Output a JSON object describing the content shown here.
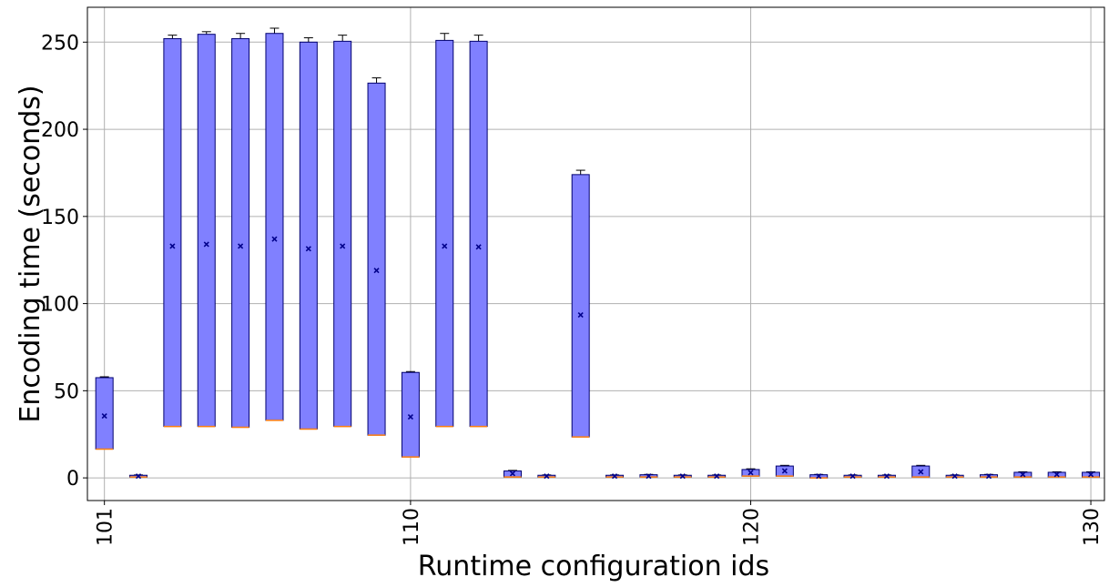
{
  "chart_data": {
    "type": "box",
    "xlabel": "Runtime configuration ids",
    "ylabel": "Encoding time (seconds)",
    "xlim": [
      100.5,
      130.4
    ],
    "ylim": [
      -13,
      270
    ],
    "xticks": [
      101,
      110,
      120,
      130
    ],
    "yticks": [
      0,
      50,
      100,
      150,
      200,
      250
    ],
    "grid": true,
    "box_color": "#8080ff",
    "median_color": "#ff7f0e",
    "mean_marker": "x",
    "positions": [
      101,
      102,
      103,
      104,
      105,
      106,
      107,
      108,
      109,
      110,
      111,
      112,
      113,
      114,
      115,
      116,
      117,
      118,
      119,
      120,
      121,
      122,
      123,
      124,
      125,
      126,
      127,
      128,
      129,
      130
    ],
    "boxes": [
      {
        "q1": 16.5,
        "median": 16.5,
        "q3": 57.5,
        "whisker_high": 58.0,
        "mean": 35.5
      },
      {
        "q1": 0.5,
        "median": 0.5,
        "q3": 1.5,
        "whisker_high": 1.7,
        "mean": 1.0
      },
      {
        "q1": 29.5,
        "median": 29.5,
        "q3": 252,
        "whisker_high": 254,
        "mean": 133
      },
      {
        "q1": 29.5,
        "median": 29.5,
        "q3": 254.5,
        "whisker_high": 256,
        "mean": 134
      },
      {
        "q1": 29.0,
        "median": 29.0,
        "q3": 252,
        "whisker_high": 255,
        "mean": 133
      },
      {
        "q1": 33.0,
        "median": 33.0,
        "q3": 255,
        "whisker_high": 258,
        "mean": 137
      },
      {
        "q1": 28.0,
        "median": 28.0,
        "q3": 250,
        "whisker_high": 252.5,
        "mean": 131.5
      },
      {
        "q1": 29.5,
        "median": 29.5,
        "q3": 250.5,
        "whisker_high": 254,
        "mean": 133
      },
      {
        "q1": 24.5,
        "median": 24.5,
        "q3": 226.5,
        "whisker_high": 229.5,
        "mean": 119
      },
      {
        "q1": 12.0,
        "median": 12.0,
        "q3": 60.5,
        "whisker_high": 61.0,
        "mean": 35
      },
      {
        "q1": 29.5,
        "median": 29.5,
        "q3": 251,
        "whisker_high": 255,
        "mean": 133
      },
      {
        "q1": 29.5,
        "median": 29.5,
        "q3": 250.5,
        "whisker_high": 254,
        "mean": 132.5
      },
      {
        "q1": 0.5,
        "median": 0.5,
        "q3": 4.0,
        "whisker_high": 4.3,
        "mean": 2.5
      },
      {
        "q1": 0.5,
        "median": 0.5,
        "q3": 1.5,
        "whisker_high": 1.7,
        "mean": 1.0
      },
      {
        "q1": 23.5,
        "median": 23.5,
        "q3": 174,
        "whisker_high": 176.5,
        "mean": 93.5
      },
      {
        "q1": 0.5,
        "median": 0.5,
        "q3": 1.5,
        "whisker_high": 1.7,
        "mean": 1.0
      },
      {
        "q1": 0.5,
        "median": 0.5,
        "q3": 1.8,
        "whisker_high": 2.0,
        "mean": 1.0
      },
      {
        "q1": 0.5,
        "median": 0.5,
        "q3": 1.5,
        "whisker_high": 1.7,
        "mean": 1.0
      },
      {
        "q1": 0.5,
        "median": 0.5,
        "q3": 1.5,
        "whisker_high": 1.7,
        "mean": 1.0
      },
      {
        "q1": 1.0,
        "median": 1.0,
        "q3": 4.8,
        "whisker_high": 5.2,
        "mean": 3.0
      },
      {
        "q1": 1.0,
        "median": 1.0,
        "q3": 6.8,
        "whisker_high": 7.2,
        "mean": 4.0
      },
      {
        "q1": 0.0,
        "median": 0.0,
        "q3": 1.8,
        "whisker_high": 2.0,
        "mean": 1.0
      },
      {
        "q1": 0.5,
        "median": 0.5,
        "q3": 1.5,
        "whisker_high": 1.7,
        "mean": 1.0
      },
      {
        "q1": 0.5,
        "median": 0.5,
        "q3": 1.5,
        "whisker_high": 1.7,
        "mean": 1.0
      },
      {
        "q1": 0.5,
        "median": 0.5,
        "q3": 6.8,
        "whisker_high": 7.2,
        "mean": 3.5
      },
      {
        "q1": 0.5,
        "median": 0.5,
        "q3": 1.5,
        "whisker_high": 1.7,
        "mean": 1.0
      },
      {
        "q1": 0.5,
        "median": 0.5,
        "q3": 1.8,
        "whisker_high": 2.0,
        "mean": 1.0
      },
      {
        "q1": 0.5,
        "median": 0.5,
        "q3": 3.2,
        "whisker_high": 3.5,
        "mean": 2.0
      },
      {
        "q1": 0.5,
        "median": 0.5,
        "q3": 3.2,
        "whisker_high": 3.5,
        "mean": 2.0
      },
      {
        "q1": 0.5,
        "median": 0.5,
        "q3": 3.2,
        "whisker_high": 3.5,
        "mean": 2.0
      }
    ]
  }
}
